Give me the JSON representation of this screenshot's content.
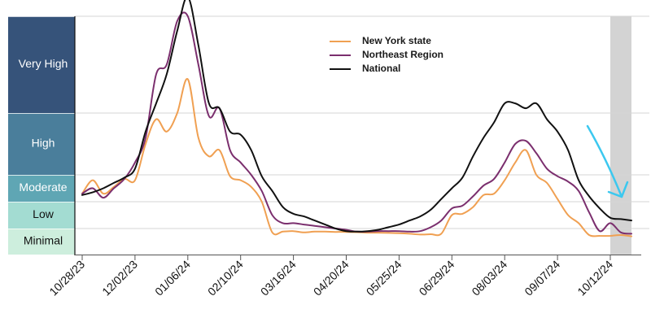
{
  "chart_data": {
    "type": "line",
    "title": "",
    "xlabel": "",
    "ylabel": "",
    "y_levels": [
      {
        "name": "Minimal",
        "range": [
          0,
          1
        ],
        "color": "#cdeedd",
        "text_color": "#111111"
      },
      {
        "name": "Low",
        "range": [
          1,
          2
        ],
        "color": "#a3dcd2",
        "text_color": "#111111"
      },
      {
        "name": "Moderate",
        "range": [
          2,
          3
        ],
        "color": "#5fa6b4",
        "text_color": "#ffffff"
      },
      {
        "name": "High",
        "range": [
          3,
          4
        ],
        "color": "#4a7e9b",
        "text_color": "#ffffff"
      },
      {
        "name": "Very High",
        "range": [
          4,
          5
        ],
        "color": "#36537a",
        "text_color": "#ffffff"
      }
    ],
    "ylim": [
      0,
      5
    ],
    "x_start": "10/28/23",
    "x_unit": "week",
    "x_tick_labels": [
      "10/28/23",
      "12/02/23",
      "01/06/24",
      "02/10/24",
      "03/16/24",
      "04/20/24",
      "05/25/24",
      "06/29/24",
      "08/03/24",
      "09/07/24",
      "10/12/24"
    ],
    "x_tick_weeks": [
      0,
      5,
      10,
      15,
      20,
      25,
      30,
      35,
      40,
      45,
      50
    ],
    "xlim_weeks": [
      -1.3,
      52
    ],
    "highlight_weeks": [
      50,
      52
    ],
    "highlight_color": "#d3d3d3",
    "grid": true,
    "legend_position": "top-center",
    "annotation": {
      "type": "arrow",
      "color": "#3cc8ef",
      "meaning": "recent decline"
    },
    "series": [
      {
        "name": "New York state",
        "color": "#f0a052",
        "weeks": [
          0,
          1,
          2,
          3,
          4,
          5,
          6,
          7,
          8,
          9,
          10,
          11,
          12,
          13,
          14,
          15,
          16,
          17,
          18,
          19,
          20,
          21,
          22,
          23,
          24,
          25,
          26,
          27,
          28,
          29,
          30,
          31,
          32,
          33,
          34,
          35,
          36,
          37,
          38,
          39,
          40,
          41,
          42,
          43,
          44,
          45,
          46,
          47,
          48,
          49,
          50,
          51,
          52
        ],
        "values": [
          2.3,
          2.8,
          2.3,
          2.55,
          2.85,
          2.8,
          3.5,
          3.9,
          3.7,
          4.0,
          4.35,
          3.6,
          3.3,
          3.4,
          2.95,
          2.8,
          2.55,
          2.0,
          0.85,
          0.88,
          0.9,
          0.85,
          0.88,
          0.88,
          0.87,
          0.87,
          0.86,
          0.84,
          0.84,
          0.83,
          0.82,
          0.8,
          0.77,
          0.78,
          0.8,
          1.5,
          1.55,
          1.8,
          2.25,
          2.3,
          2.8,
          3.2,
          3.4,
          3.0,
          2.7,
          2.1,
          1.5,
          1.2,
          0.75,
          0.72,
          0.72,
          0.75,
          0.7
        ]
      },
      {
        "name": "Northeast Region",
        "color": "#7b2f6e",
        "weeks": [
          0,
          1,
          2,
          3,
          4,
          5,
          6,
          7,
          8,
          9,
          10,
          11,
          12,
          13,
          14,
          15,
          16,
          17,
          18,
          19,
          20,
          21,
          22,
          23,
          24,
          25,
          26,
          27,
          28,
          29,
          30,
          31,
          32,
          33,
          34,
          35,
          36,
          37,
          38,
          39,
          40,
          41,
          42,
          43,
          44,
          45,
          46,
          47,
          48,
          49,
          50,
          51,
          52
        ],
        "values": [
          2.3,
          2.5,
          2.15,
          2.5,
          2.85,
          3.2,
          3.6,
          4.4,
          4.5,
          4.95,
          5.0,
          4.5,
          3.95,
          4.05,
          3.4,
          3.2,
          3.0,
          2.4,
          1.5,
          1.2,
          1.2,
          1.15,
          1.1,
          1.05,
          1.0,
          0.95,
          0.88,
          0.88,
          0.9,
          0.9,
          0.9,
          0.88,
          0.9,
          1.05,
          1.3,
          1.75,
          1.85,
          2.2,
          2.6,
          2.85,
          3.2,
          3.5,
          3.55,
          3.35,
          3.1,
          2.95,
          2.75,
          2.4,
          1.6,
          0.9,
          1.2,
          0.85,
          0.8
        ]
      },
      {
        "name": "National",
        "color": "#111111",
        "weeks": [
          0,
          1,
          2,
          3,
          4,
          5,
          6,
          7,
          8,
          9,
          10,
          11,
          12,
          13,
          14,
          15,
          16,
          17,
          18,
          19,
          20,
          21,
          22,
          23,
          24,
          25,
          26,
          27,
          28,
          29,
          30,
          31,
          32,
          33,
          34,
          35,
          36,
          37,
          38,
          39,
          40,
          41,
          42,
          43,
          44,
          45,
          46,
          47,
          48,
          49,
          50,
          51,
          52
        ],
        "values": [
          2.25,
          2.35,
          2.5,
          2.7,
          2.9,
          3.1,
          3.7,
          4.1,
          4.4,
          4.85,
          5.2,
          4.7,
          4.1,
          4.05,
          3.7,
          3.65,
          3.4,
          2.95,
          2.4,
          1.8,
          1.55,
          1.45,
          1.3,
          1.15,
          1.0,
          0.9,
          0.88,
          0.9,
          0.95,
          1.05,
          1.15,
          1.3,
          1.45,
          1.7,
          2.1,
          2.5,
          2.9,
          3.3,
          3.6,
          3.85,
          4.1,
          4.1,
          4.05,
          4.1,
          3.9,
          3.7,
          3.4,
          2.8,
          2.2,
          1.75,
          1.4,
          1.35,
          1.3
        ]
      }
    ]
  }
}
